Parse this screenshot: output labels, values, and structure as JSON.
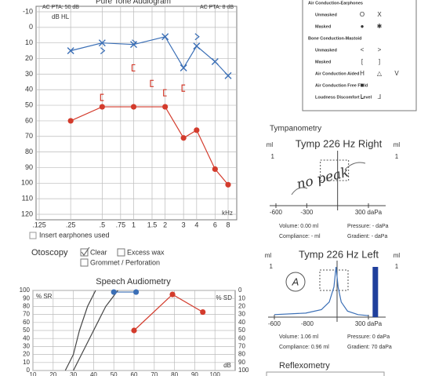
{
  "legend_box": {
    "rows": [
      {
        "label": "Air Conduction-Earphones",
        "symbols": []
      },
      {
        "label": "Unmasked",
        "symbols": [
          "O",
          "X"
        ]
      },
      {
        "label": "Masked",
        "symbols": [
          "●",
          "✱"
        ]
      },
      {
        "label": "Bone Conduction-Mastoid",
        "symbols": []
      },
      {
        "label": "Unmasked",
        "symbols": [
          "<",
          ">"
        ]
      },
      {
        "label": "Masked",
        "symbols": [
          "[",
          "]"
        ]
      },
      {
        "label": "Air Conduction Aided",
        "symbols": [
          "H",
          "△",
          "V"
        ]
      },
      {
        "label": "Air Conduction Free Field",
        "symbols": [
          "■"
        ]
      },
      {
        "label": "Loudness Discomfort Level",
        "symbols": [
          "L",
          "⅃"
        ]
      }
    ]
  },
  "insert_note": "Insert earphones used",
  "otoscopy": {
    "label": "Otoscopy",
    "options": [
      "Clear",
      "Excess wax",
      "Grommet / Perforation"
    ]
  },
  "tympanometry_title": "Tympanometry",
  "reflexometry_title": "Reflexometry",
  "chart_data": [
    {
      "type": "line",
      "title": "Pure Tone Audiogram",
      "y_label": "dB HL",
      "x_label": "kHz",
      "annotations": [
        "AC PTA: 50 dB",
        "AC PTA: 8 dB"
      ],
      "x_log": true,
      "y_reversed": true,
      "grid": true,
      "xlim": [
        0.125,
        8
      ],
      "xticks": [
        {
          "value": 0.125,
          "label": ".125"
        },
        {
          "value": 0.25,
          "label": ".25"
        },
        {
          "value": 0.5,
          "label": ".5"
        },
        {
          "value": 0.75,
          "label": ".75"
        },
        1,
        1.5,
        2,
        3,
        4,
        6,
        8
      ],
      "ylim": [
        -10,
        120
      ],
      "yticks": [
        -10,
        0,
        10,
        20,
        30,
        40,
        50,
        60,
        70,
        80,
        90,
        100,
        110,
        120
      ],
      "series": [
        {
          "color": "#3b6fb6",
          "marker": "x",
          "line": true,
          "x": [
            0.25,
            0.5,
            1,
            2,
            3,
            4,
            6,
            8
          ],
          "values": [
            15,
            10,
            11,
            6,
            26,
            12,
            22,
            31
          ]
        },
        {
          "color": "#d33b2c",
          "marker": "dot",
          "line": true,
          "x": [
            0.25,
            0.5,
            1,
            2,
            3,
            4,
            6,
            8
          ],
          "values": [
            60,
            51,
            51,
            51,
            71,
            66,
            91,
            101
          ]
        },
        {
          "color": "#d33b2c",
          "marker": "bracket",
          "line": false,
          "x": [
            0.5,
            1,
            1.5,
            2,
            3
          ],
          "values": [
            45,
            26,
            36,
            42,
            39
          ]
        },
        {
          "color": "#3b6fb6",
          "marker": "angle",
          "line": false,
          "x": [
            0.5,
            1,
            4
          ],
          "values": [
            15,
            10,
            6
          ]
        }
      ]
    },
    {
      "type": "line",
      "title": "Speech Audiometry",
      "y_label": "% SR",
      "y2_label": "% SD",
      "x_label": "dB",
      "grid": true,
      "xlim": [
        10,
        110
      ],
      "xticks": [
        10,
        20,
        30,
        40,
        50,
        60,
        70,
        80,
        90,
        100
      ],
      "ylim": [
        0,
        100
      ],
      "yticks": [
        0,
        10,
        20,
        30,
        40,
        50,
        60,
        70,
        80,
        90,
        100
      ],
      "y2lim": [
        0,
        100
      ],
      "y2_reversed": true,
      "y2ticks": [
        0,
        10,
        20,
        30,
        40,
        50,
        60,
        70,
        80,
        90,
        100
      ],
      "series": [
        {
          "color": "#444444",
          "line": true,
          "x": [
            26,
            30,
            33,
            37,
            41
          ],
          "values": [
            0,
            20,
            50,
            80,
            100
          ]
        },
        {
          "color": "#444444",
          "line": true,
          "x": [
            30,
            34,
            40,
            46,
            52
          ],
          "values": [
            0,
            20,
            50,
            80,
            100
          ]
        },
        {
          "color": "#d33b2c",
          "marker": "dot",
          "line": true,
          "x": [
            60,
            79,
            94
          ],
          "values": [
            50,
            95,
            73
          ]
        },
        {
          "color": "#3b6fb6",
          "marker": "dot",
          "line": true,
          "x": [
            50,
            61
          ],
          "values": [
            98,
            98
          ]
        }
      ]
    },
    {
      "type": "line",
      "title": "Tymp 226 Hz Right",
      "y_label": "ml",
      "xlim": [
        -600,
        300
      ],
      "xticks": [
        -600,
        -300,
        {
          "value": 300,
          "label": "300 daPa"
        }
      ],
      "ylim": [
        0,
        1
      ],
      "yticks": [
        1
      ],
      "annotations": [
        "no peak"
      ],
      "readouts": [
        "Volume: 0.00 ml",
        "Pressure: - daPa",
        "Compliance: - ml",
        "Gradient: - daPa"
      ],
      "series": []
    },
    {
      "type": "line",
      "title": "Tymp 226 Hz Left",
      "y_label": "ml",
      "xlim": [
        -600,
        300
      ],
      "xticks": [
        -600,
        {
          "value": 300,
          "label": "300 daPa"
        }
      ],
      "ylim": [
        0,
        1
      ],
      "yticks": [
        1
      ],
      "annotations": [
        "-800",
        "A"
      ],
      "readouts": [
        "Volume: 1.06 ml",
        "Pressure: 0 daPa",
        "Compliance: 0.96 ml",
        "Gradient: 70 daPa"
      ],
      "bar": {
        "x": 340,
        "value": 1,
        "color": "#1f3f9c"
      },
      "series": [
        {
          "color": "#3b6fb6",
          "line": true,
          "x": [
            -600,
            -300,
            -150,
            -75,
            -30,
            -10,
            10,
            40,
            100,
            200,
            300
          ],
          "values": [
            0.05,
            0.08,
            0.15,
            0.3,
            0.6,
            1,
            0.6,
            0.3,
            0.12,
            0.05,
            0.03
          ]
        }
      ]
    }
  ]
}
